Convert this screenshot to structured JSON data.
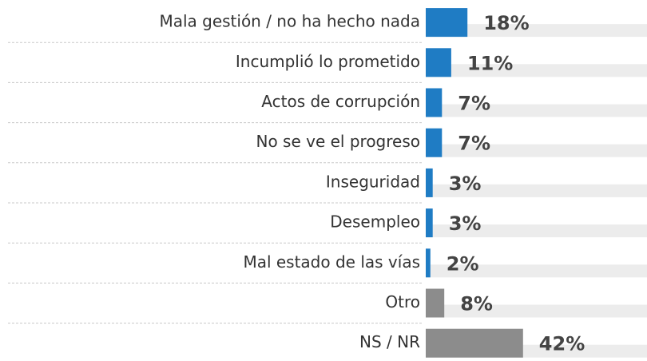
{
  "chart_data": {
    "type": "hbar",
    "categories": [
      "Mala gestión / no ha hecho nada",
      "Incumplió lo prometido",
      "Actos de corrupción",
      "No se ve el progreso",
      "Inseguridad",
      "Desempleo",
      "Mal estado de las vías",
      "Otro",
      "NS / NR"
    ],
    "values": [
      18,
      11,
      7,
      7,
      3,
      3,
      2,
      8,
      42
    ],
    "value_labels": [
      "18%",
      "11%",
      "7%",
      "7%",
      "3%",
      "3%",
      "2%",
      "8%",
      "42%"
    ],
    "colors": [
      "#1f7cc4",
      "#1f7cc4",
      "#1f7cc4",
      "#1f7cc4",
      "#1f7cc4",
      "#1f7cc4",
      "#1f7cc4",
      "#8c8c8c",
      "#8c8c8c"
    ]
  }
}
